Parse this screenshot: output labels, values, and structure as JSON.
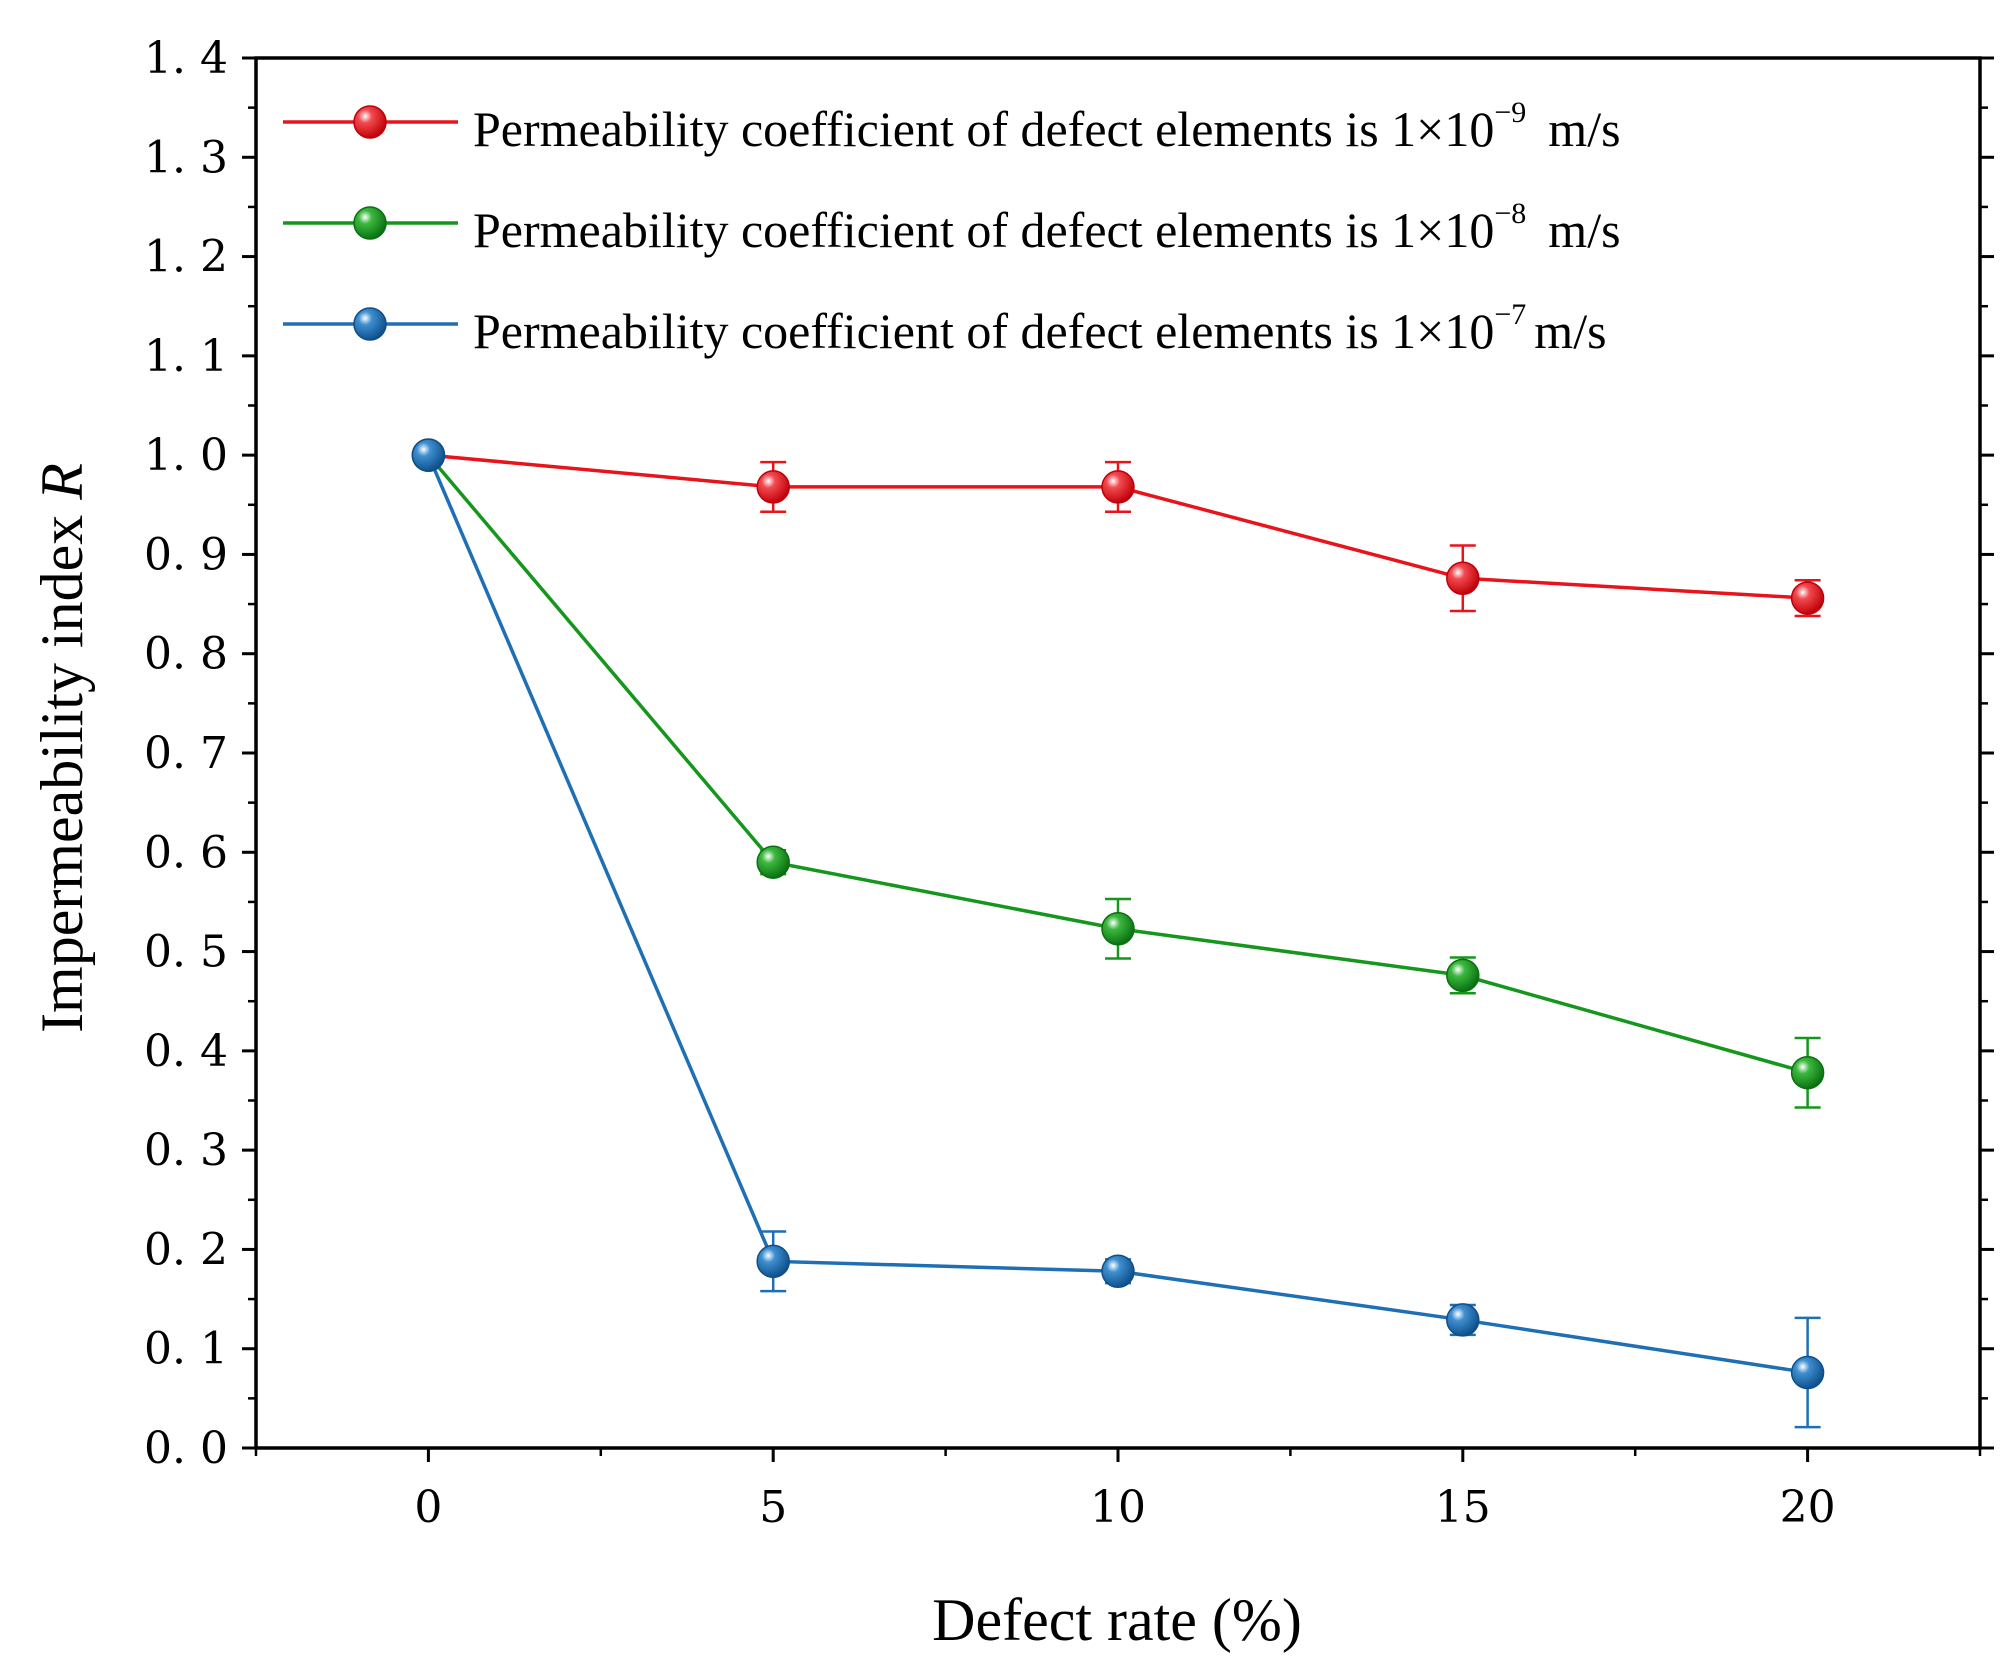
{
  "chart_data": {
    "type": "line",
    "title": "",
    "xlabel": "Defect rate (%)",
    "ylabel": "Impermeability index",
    "ylabel_italic": "R",
    "x": [
      0,
      5,
      10,
      15,
      20
    ],
    "xlim": [
      -2.5,
      22.5
    ],
    "ylim": [
      0,
      1.4
    ],
    "xticks": [
      "0",
      "5",
      "10",
      "15",
      "20"
    ],
    "yticks": [
      "0. 0",
      "0. 1",
      "0. 2",
      "0. 3",
      "0. 4",
      "0. 5",
      "0. 6",
      "0. 7",
      "0. 8",
      "0. 9",
      "1. 0",
      "1. 1",
      "1. 2",
      "1. 3",
      "1. 4"
    ],
    "grid": false,
    "legend_position": "top",
    "series": [
      {
        "name": "Permeability coefficient of defect elements is 1×10",
        "exponent": "−9",
        "unit": "m/s",
        "color": "#e8141c",
        "values": [
          1.0,
          0.968,
          0.968,
          0.876,
          0.856
        ],
        "errors": [
          0.0,
          0.025,
          0.025,
          0.033,
          0.018
        ]
      },
      {
        "name": "Permeability coefficient of defect elements is 1×10",
        "exponent": "−8",
        "unit": "m/s",
        "color": "#15961c",
        "values": [
          1.0,
          0.59,
          0.523,
          0.476,
          0.378
        ],
        "errors": [
          0.0,
          0.012,
          0.03,
          0.018,
          0.035
        ]
      },
      {
        "name": "Permeability coefficient of defect elements is 1×10",
        "exponent": "−7",
        "unit": "m/s",
        "color": "#1e6fb4",
        "values": [
          1.0,
          0.188,
          0.178,
          0.129,
          0.076
        ],
        "errors": [
          0.0,
          0.03,
          0.012,
          0.015,
          0.055
        ]
      }
    ]
  }
}
